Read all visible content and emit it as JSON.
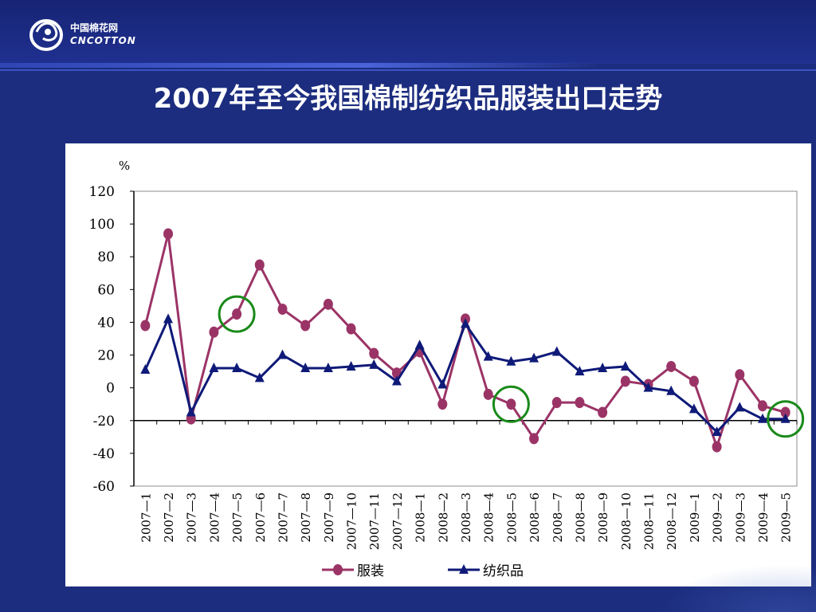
{
  "header": {
    "logo_cn": "中国棉花网",
    "logo_en": "CNCOTTON"
  },
  "title": "2007年至今我国棉制纺织品服装出口走势",
  "colors": {
    "background": "#1c2d7f",
    "series_apparel": "#9b3466",
    "series_textile": "#0f1a78",
    "highlight_circle": "#1a8a1a"
  },
  "chart_data": {
    "type": "line",
    "unit_label": "%",
    "ylim": [
      -60,
      120
    ],
    "yticks": [
      120,
      100,
      80,
      60,
      40,
      20,
      0,
      -20,
      -40,
      -60
    ],
    "reference_line": -20,
    "categories": [
      "2007—1",
      "2007—2",
      "2007—3",
      "2007—4",
      "2007—5",
      "2007—6",
      "2007—7",
      "2007—8",
      "2007—9",
      "2007—10",
      "2007—11",
      "2007—12",
      "2008—1",
      "2008—2",
      "2008—3",
      "2008—4",
      "2008—5",
      "2008—6",
      "2008—7",
      "2008—8",
      "2008—9",
      "2008—10",
      "2008—11",
      "2008—12",
      "2009—1",
      "2009—2",
      "2009—3",
      "2009—4",
      "2009—5"
    ],
    "series": [
      {
        "name": "服装",
        "marker": "circle",
        "values": [
          38,
          94,
          -19,
          34,
          45,
          75,
          48,
          38,
          51,
          36,
          21,
          9,
          22,
          -10,
          42,
          -4,
          -10,
          -31,
          -9,
          -9,
          -15,
          4,
          2,
          13,
          4,
          -36,
          8,
          -11,
          -15
        ]
      },
      {
        "name": "纺织品",
        "marker": "triangle",
        "values": [
          11,
          42,
          -15,
          12,
          12,
          6,
          20,
          12,
          12,
          13,
          14,
          4,
          26,
          2,
          39,
          19,
          16,
          18,
          22,
          10,
          12,
          13,
          0,
          -2,
          -13,
          -27,
          -12,
          -19,
          -19
        ]
      }
    ],
    "highlights": [
      {
        "category": "2007—5",
        "series": "服装"
      },
      {
        "category": "2008—5",
        "series": "服装"
      },
      {
        "category": "2009—5",
        "series": "纺织品"
      }
    ],
    "legend_position": "bottom-center",
    "grid": false
  }
}
